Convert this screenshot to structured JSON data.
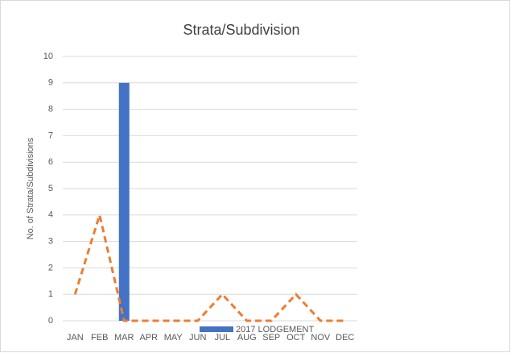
{
  "chart_data": {
    "type": "bar",
    "title": "Strata/Subdivision",
    "y_label": "No. of Strata/Subdivisions",
    "categories": [
      "JAN",
      "FEB",
      "MAR",
      "APR",
      "MAY",
      "JUN",
      "JUL",
      "AUG",
      "SEP",
      "OCT",
      "NOV",
      "DEC"
    ],
    "series": [
      {
        "name": "2017 LODGEMENT",
        "type": "bar",
        "color": "#4472c4",
        "values": [
          0,
          0,
          9,
          0,
          0,
          0,
          0,
          0,
          0,
          0,
          0,
          0
        ]
      },
      {
        "type": "line",
        "color": "#ed7d31",
        "dashed": true,
        "values": [
          1,
          4,
          0,
          0,
          0,
          0,
          1,
          0,
          0,
          1,
          0,
          0
        ]
      }
    ],
    "ylim": [
      0,
      10
    ],
    "yticks": [
      0,
      1,
      2,
      3,
      4,
      5,
      6,
      7,
      8,
      9,
      10
    ],
    "grid": true,
    "legend": "bottom"
  }
}
